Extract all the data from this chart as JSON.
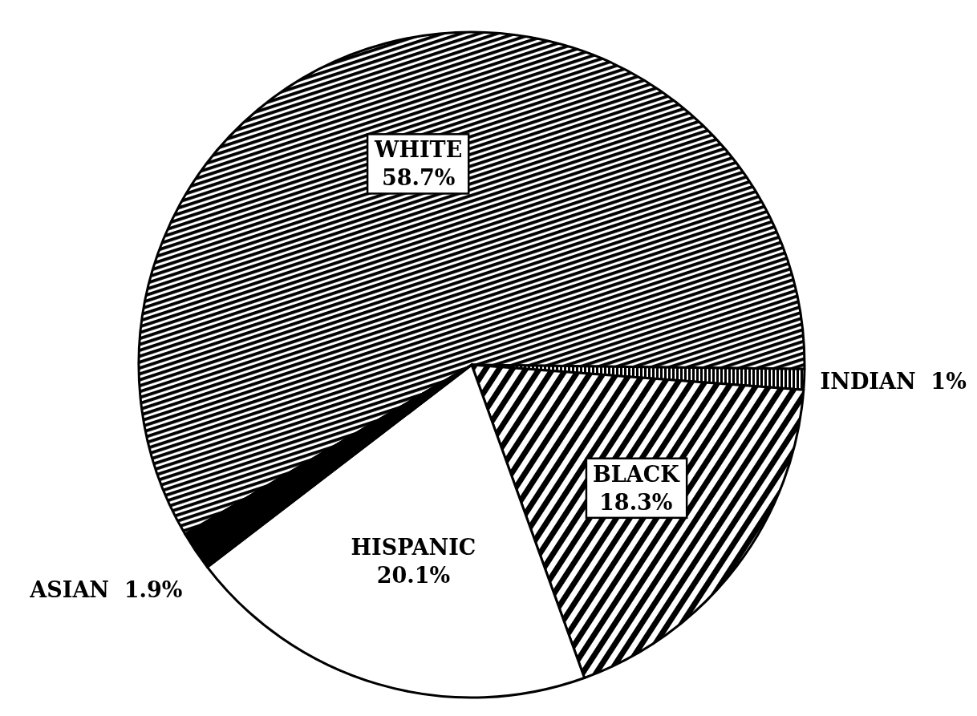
{
  "chart_data": {
    "type": "pie",
    "categories": [
      "WHITE",
      "INDIAN",
      "BLACK",
      "HISPANIC",
      "ASIAN"
    ],
    "values": [
      58.7,
      1,
      18.3,
      20.1,
      1.9
    ],
    "colors": [
      "#000000",
      "#000000",
      "#000000",
      "#ffffff",
      "#000000"
    ],
    "value_labels": [
      "58.7%",
      "1%",
      "18.3%",
      "20.1%",
      "1.9%"
    ]
  }
}
